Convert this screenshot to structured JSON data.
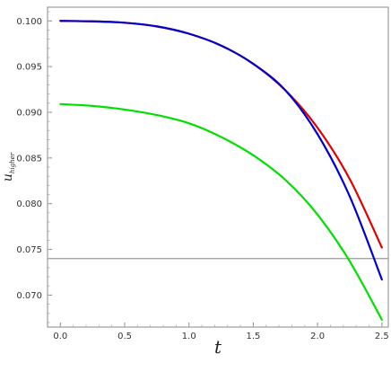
{
  "chart_data": {
    "type": "line",
    "xlabel": "t",
    "ylabel_main": "u",
    "ylabel_sub": "higher",
    "xlim": [
      -0.1,
      2.55
    ],
    "ylim": [
      0.0665,
      0.1015
    ],
    "x_ticks": [
      0.0,
      0.5,
      1.0,
      1.5,
      2.0,
      2.5
    ],
    "x_tick_labels": [
      "0.0",
      "0.5",
      "1.0",
      "1.5",
      "2.0",
      "2.5"
    ],
    "y_ticks": [
      0.07,
      0.075,
      0.08,
      0.085,
      0.09,
      0.095,
      0.1
    ],
    "y_tick_labels": [
      "0.070",
      "0.075",
      "0.080",
      "0.085",
      "0.090",
      "0.095",
      "0.100"
    ],
    "grid": false,
    "legend": "none",
    "series": [
      {
        "color": "#e00000",
        "x": [
          0.0,
          0.25,
          0.5,
          0.75,
          1.0,
          1.25,
          1.5,
          1.75,
          2.0,
          2.25,
          2.5
        ],
        "y": [
          0.1,
          0.09995,
          0.0998,
          0.0994,
          0.0986,
          0.0973,
          0.0953,
          0.0924,
          0.0883,
          0.0827,
          0.0752
        ]
      },
      {
        "color": "#0000cc",
        "x": [
          0.0,
          0.25,
          0.5,
          0.75,
          1.0,
          1.25,
          1.5,
          1.75,
          2.0,
          2.25,
          2.5
        ],
        "y": [
          0.1,
          0.09995,
          0.0998,
          0.0994,
          0.0986,
          0.0973,
          0.0953,
          0.0924,
          0.0876,
          0.0808,
          0.0717
        ]
      },
      {
        "color": "#00e000",
        "x": [
          0.0,
          0.25,
          0.5,
          0.75,
          1.0,
          1.25,
          1.5,
          1.75,
          2.0,
          2.25,
          2.5
        ],
        "y": [
          0.0909,
          0.0907,
          0.0903,
          0.0897,
          0.0888,
          0.0873,
          0.0853,
          0.0826,
          0.0788,
          0.0737,
          0.0673
        ]
      }
    ],
    "reference_line": {
      "y": 0.074,
      "color": "#999999"
    }
  }
}
